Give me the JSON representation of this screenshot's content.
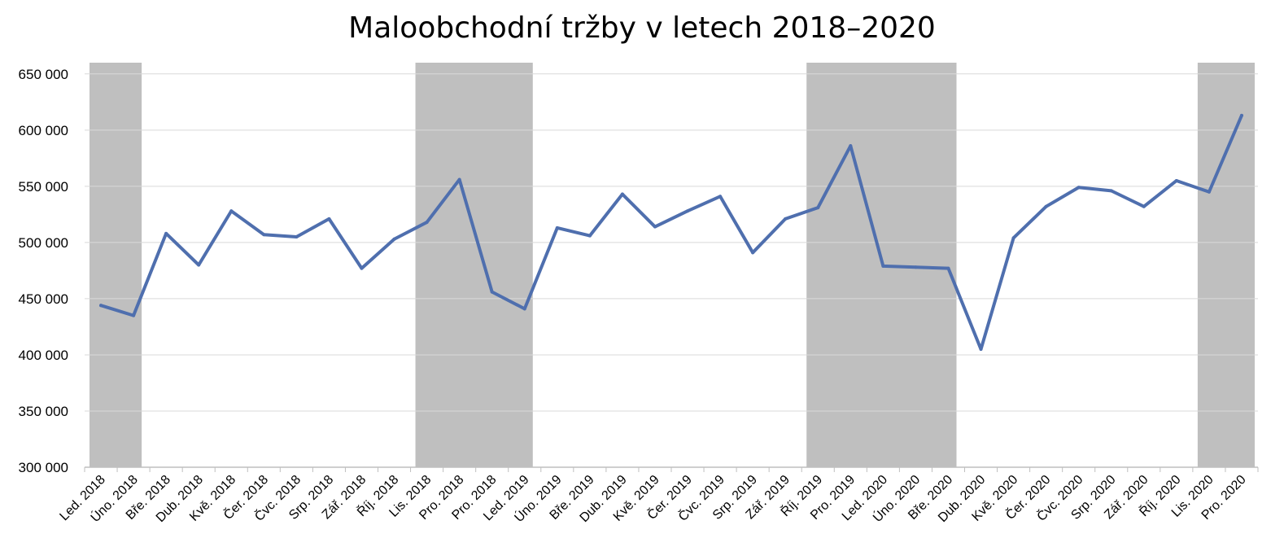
{
  "chart_data": {
    "type": "line",
    "title": "Maloobchodní tržby v letech 2018–2020",
    "xlabel": "",
    "ylabel": "",
    "ylim": [
      300000,
      660000
    ],
    "yticks": [
      300000,
      350000,
      400000,
      450000,
      500000,
      550000,
      600000,
      650000
    ],
    "ytick_labels": [
      "300 000",
      "350 000",
      "400 000",
      "450 000",
      "500 000",
      "550 000",
      "600 000",
      "650 000"
    ],
    "grid": true,
    "legend": "none",
    "categories": [
      "Led. 2018",
      "Úno. 2018",
      "Bře. 2018",
      "Dub. 2018",
      "Kvě. 2018",
      "Čer. 2018",
      "Čvc. 2018",
      "Srp. 2018",
      "Zář. 2018",
      "Říj. 2018",
      "Lis. 2018",
      "Pro. 2018",
      "Pro. 2018",
      "Led. 2019",
      "Úno. 2019",
      "Bře. 2019",
      "Dub. 2019",
      "Kvě. 2019",
      "Čer. 2019",
      "Čvc. 2019",
      "Srp. 2019",
      "Zář. 2019",
      "Říj. 2019",
      "Pro. 2019",
      "Led. 2020",
      "Úno. 2020",
      "Bře. 2020",
      "Dub. 2020",
      "Kvě. 2020",
      "Čer. 2020",
      "Čvc. 2020",
      "Srp. 2020",
      "Zář. 2020",
      "Říj. 2020",
      "Lis. 2020",
      "Pro. 2020"
    ],
    "series": [
      {
        "values": [
          444000,
          435000,
          508000,
          480000,
          528000,
          507000,
          505000,
          521000,
          477000,
          503000,
          518000,
          556000,
          456000,
          441000,
          513000,
          506000,
          543000,
          514000,
          528000,
          541000,
          491000,
          521000,
          531000,
          586000,
          479000,
          478000,
          477000,
          405000,
          504000,
          532000,
          549000,
          546000,
          532000,
          555000,
          545000,
          613000
        ]
      }
    ],
    "shaded_ranges": [
      {
        "from": "Led. 2018",
        "to": "Úno. 2018"
      },
      {
        "from": "Lis. 2018",
        "to": "Led. 2019"
      },
      {
        "from": "Říj. 2019",
        "to": "Bře. 2020"
      },
      {
        "from": "Lis. 2020",
        "to": "Pro. 2020"
      }
    ],
    "colors": {
      "line": "#4F6FAE",
      "shade": "#BFBFBF",
      "grid": "#D9D9D9",
      "axis": "#BFBFBF"
    }
  }
}
